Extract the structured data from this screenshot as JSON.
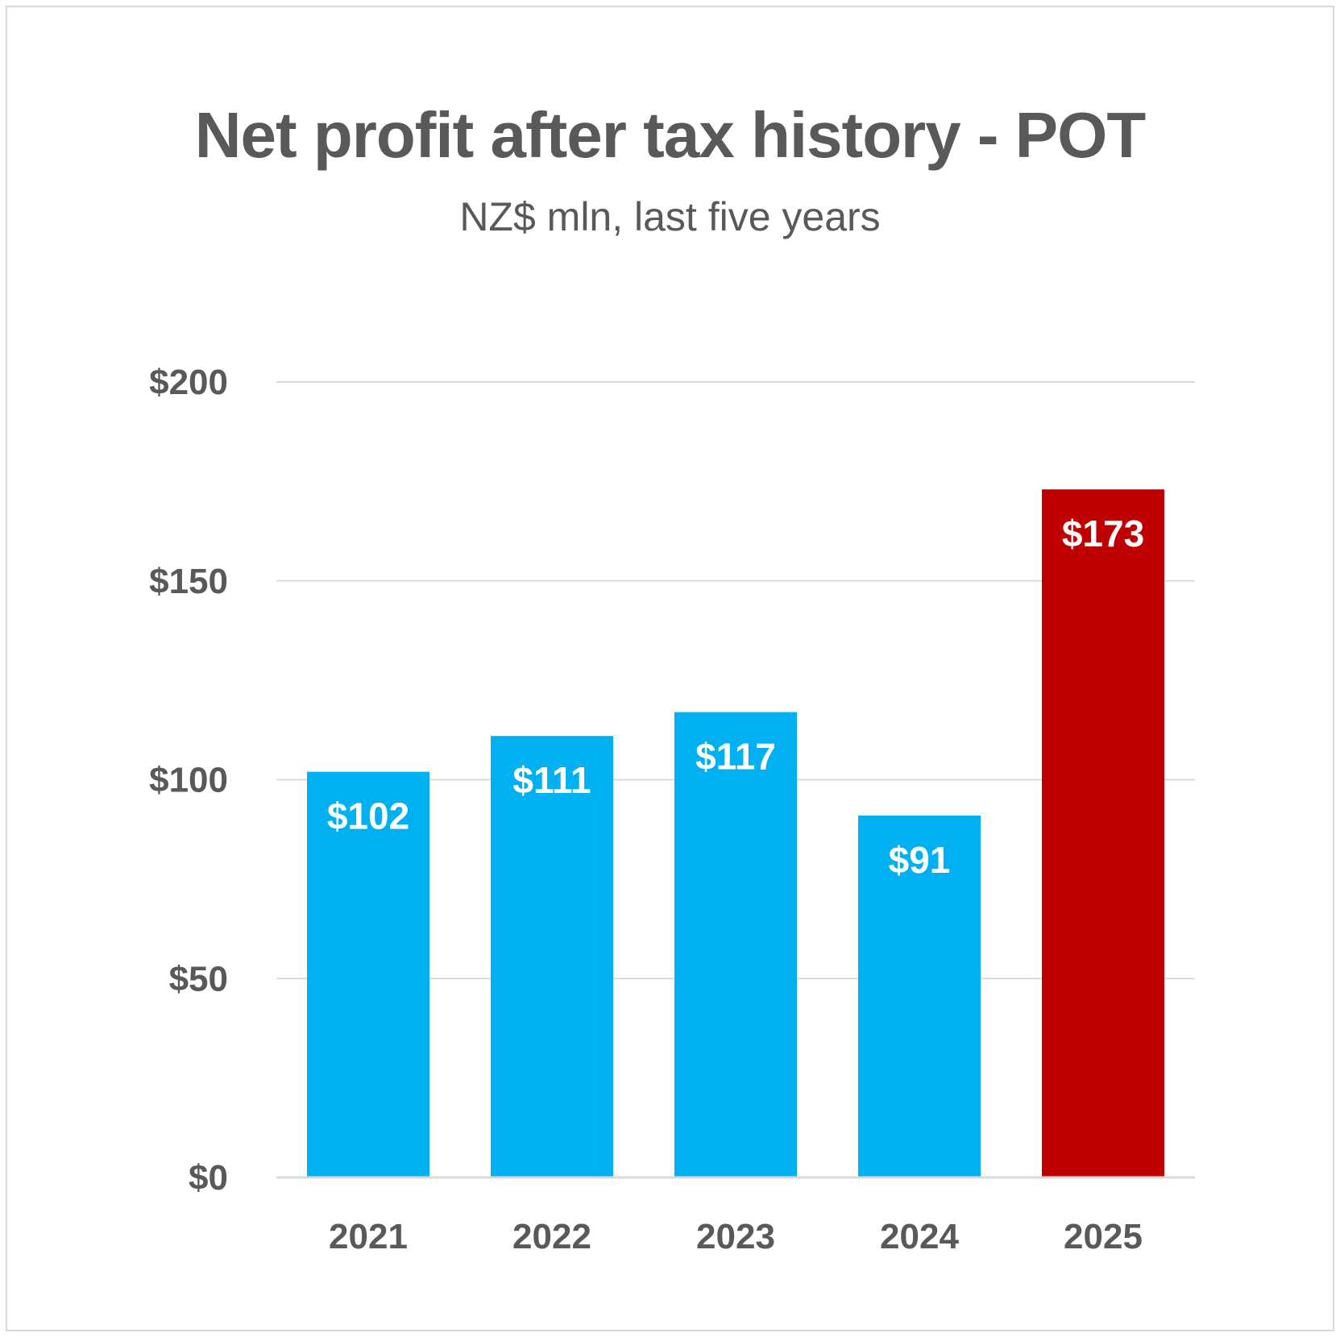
{
  "chart_data": {
    "type": "bar",
    "title": "Net profit after tax history - POT",
    "subtitle": "NZ$ mln, last five years",
    "categories": [
      "2021",
      "2022",
      "2023",
      "2024",
      "2025"
    ],
    "values": [
      102,
      111,
      117,
      91,
      173
    ],
    "data_labels": [
      "$102",
      "$111",
      "$117",
      "$91",
      "$173"
    ],
    "ylim": [
      0,
      200
    ],
    "yticks": [
      0,
      50,
      100,
      150,
      200
    ],
    "ytick_labels": [
      "$0",
      "$50",
      "$100",
      "$150",
      "$200"
    ],
    "grid": true,
    "bar_colors": [
      "#00b0f0",
      "#00b0f0",
      "#00b0f0",
      "#00b0f0",
      "#c00000"
    ],
    "gridline_color": "#d9d9d9",
    "text_color": "#595959"
  }
}
